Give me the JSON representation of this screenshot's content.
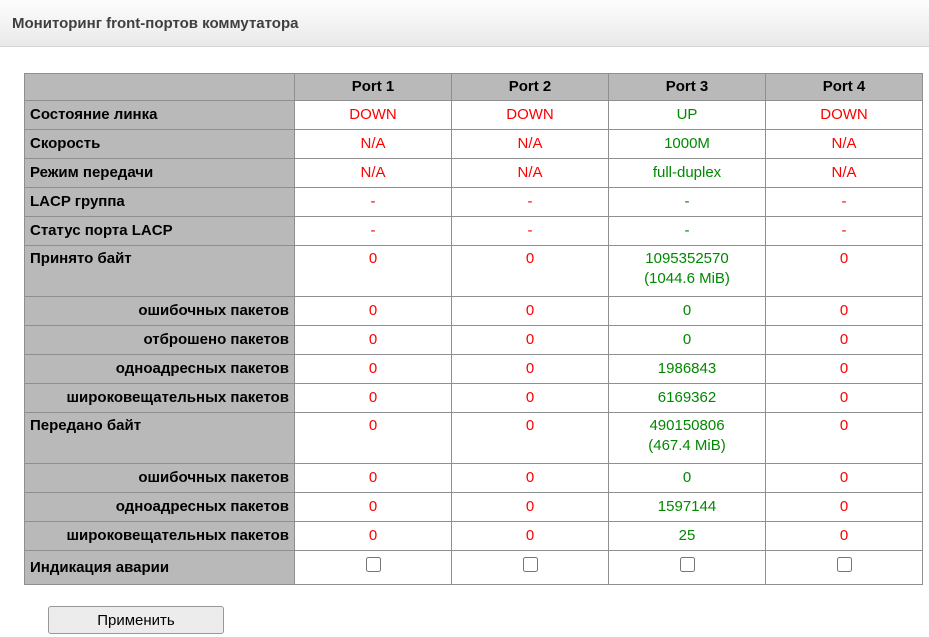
{
  "page": {
    "title": "Мониторинг front-портов коммутатора"
  },
  "colors": {
    "link_up": "#008800",
    "link_down": "#ff0000",
    "label_bg": "#b9b9b9"
  },
  "table": {
    "port_headers": [
      "Port 1",
      "Port 2",
      "Port 3",
      "Port 4"
    ],
    "port_status": [
      "down",
      "down",
      "up",
      "down"
    ],
    "rows": [
      {
        "label": "Состояние линка",
        "values": [
          "DOWN",
          "DOWN",
          "UP",
          "DOWN"
        ]
      },
      {
        "label": "Скорость",
        "values": [
          "N/A",
          "N/A",
          "1000M",
          "N/A"
        ]
      },
      {
        "label": "Режим передачи",
        "values": [
          "N/A",
          "N/A",
          "full-duplex",
          "N/A"
        ]
      },
      {
        "label": "LACP группа",
        "values": [
          "-",
          "-",
          "-",
          "-"
        ]
      },
      {
        "label": "Статус порта LACP",
        "values": [
          "-",
          "-",
          "-",
          "-"
        ]
      },
      {
        "label": "Принято байт",
        "values": [
          "0",
          "0",
          "1095352570\n(1044.6 MiB)",
          "0"
        ]
      },
      {
        "label": "ошибочных пакетов",
        "values": [
          "0",
          "0",
          "0",
          "0"
        ]
      },
      {
        "label": "отброшено пакетов",
        "values": [
          "0",
          "0",
          "0",
          "0"
        ]
      },
      {
        "label": "одноадресных пакетов",
        "values": [
          "0",
          "0",
          "1986843",
          "0"
        ]
      },
      {
        "label": "широковещательных пакетов",
        "values": [
          "0",
          "0",
          "6169362",
          "0"
        ]
      },
      {
        "label": "Передано байт",
        "values": [
          "0",
          "0",
          "490150806\n(467.4 MiB)",
          "0"
        ]
      },
      {
        "label": "ошибочных пакетов",
        "values": [
          "0",
          "0",
          "0",
          "0"
        ]
      },
      {
        "label": "одноадресных пакетов",
        "values": [
          "0",
          "0",
          "1597144",
          "0"
        ]
      },
      {
        "label": "широковещательных пакетов",
        "values": [
          "0",
          "0",
          "25",
          "0"
        ]
      },
      {
        "label": "Индикация аварии",
        "checkboxes": [
          false,
          false,
          false,
          false
        ]
      }
    ]
  },
  "actions": {
    "apply_label": "Применить"
  }
}
